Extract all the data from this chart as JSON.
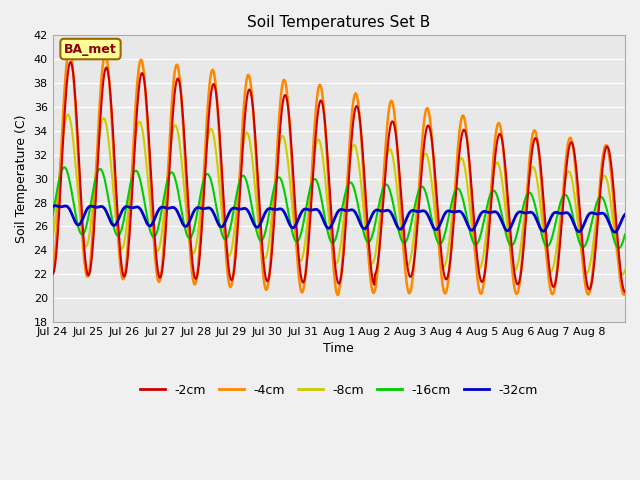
{
  "title": "Soil Temperatures Set B",
  "xlabel": "Time",
  "ylabel": "Soil Temperature (C)",
  "ylim": [
    18,
    42
  ],
  "yticks": [
    18,
    20,
    22,
    24,
    26,
    28,
    30,
    32,
    34,
    36,
    38,
    40,
    42
  ],
  "xtick_labels": [
    "Jul 24",
    "Jul 25",
    "Jul 26",
    "Jul 27",
    "Jul 28",
    "Jul 29",
    "Jul 30",
    "Jul 31",
    "Aug 1",
    "Aug 2",
    "Aug 3",
    "Aug 4",
    "Aug 5",
    "Aug 6",
    "Aug 7",
    "Aug 8"
  ],
  "legend_labels": [
    "-2cm",
    "-4cm",
    "-8cm",
    "-16cm",
    "-32cm"
  ],
  "legend_colors": [
    "#cc0000",
    "#ff8800",
    "#cccc00",
    "#00cc00",
    "#0000cc"
  ],
  "line_widths": [
    1.5,
    1.8,
    1.5,
    1.5,
    2.0
  ],
  "bg_color": "#e8e8e8",
  "fig_color": "#f0f0f0",
  "annotation_text": "BA_met",
  "annotation_bg": "#ffff99",
  "annotation_border": "#996600",
  "n_days": 16,
  "pts_per_day": 48
}
